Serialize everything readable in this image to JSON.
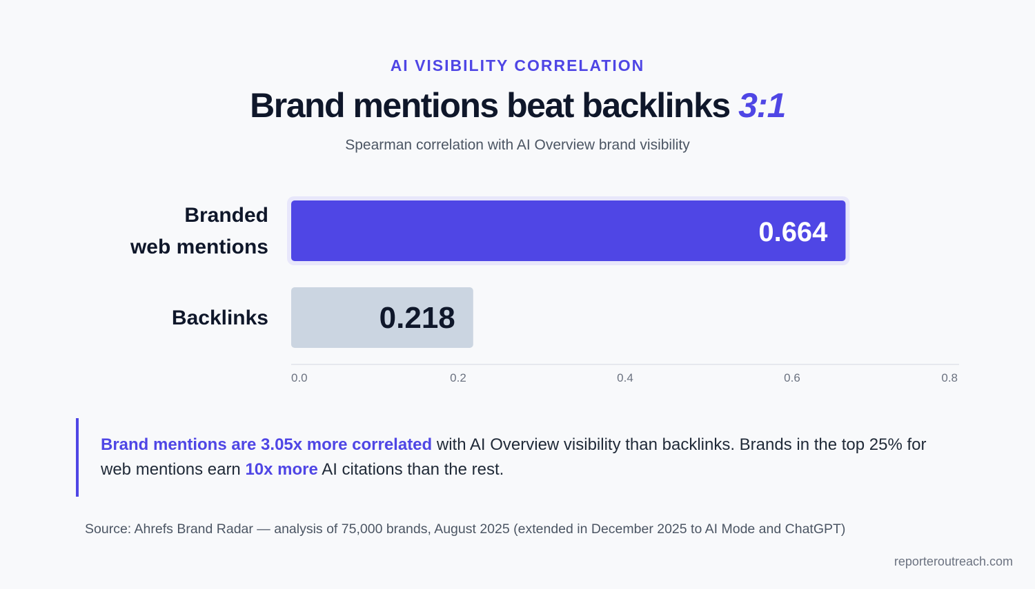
{
  "header": {
    "eyebrow": "AI VISIBILITY CORRELATION",
    "title_main": "Brand mentions beat backlinks ",
    "title_accent": "3:1",
    "subtitle": "Spearman correlation with AI Overview brand visibility"
  },
  "chart_data": {
    "type": "bar",
    "orientation": "horizontal",
    "categories": [
      "Branded web mentions",
      "Backlinks"
    ],
    "category_lines": [
      [
        "Branded",
        "web mentions"
      ],
      [
        "Backlinks"
      ]
    ],
    "values": [
      0.664,
      0.218
    ],
    "value_labels": [
      "0.664",
      "0.218"
    ],
    "xlim": [
      0,
      0.8
    ],
    "xticks": [
      "0.0",
      "0.2",
      "0.4",
      "0.6",
      "0.8"
    ],
    "tick_values": [
      0,
      0.2,
      0.4,
      0.6,
      0.8
    ],
    "colors": [
      "#4f46e5",
      "#cbd5e1"
    ],
    "label_colors": [
      "#ffffff",
      "#0f172a"
    ],
    "grid": false
  },
  "callout": {
    "hl1": "Brand mentions are 3.05x more correlated",
    "t1": " with AI Overview visibility than backlinks. Brands in the top 25% for web mentions earn ",
    "hl2": "10x more",
    "t2": " AI citations than the rest."
  },
  "footer": {
    "source": "Source: Ahrefs Brand Radar — analysis of 75,000 brands, August 2025 (extended in December 2025 to AI Mode and ChatGPT)",
    "site": "reporteroutreach.com"
  }
}
